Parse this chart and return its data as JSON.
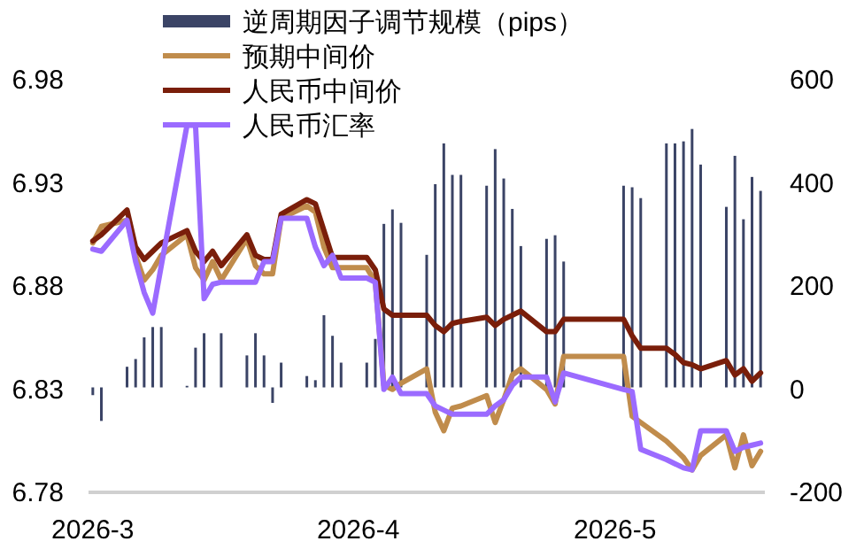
{
  "chart_data": {
    "type": "line",
    "marker": "none",
    "line_style": "solid",
    "legend": "top",
    "grid": false,
    "x": [
      "2026-03-01",
      "2026-03-02",
      "2026-03-05",
      "2026-03-06",
      "2026-03-07",
      "2026-03-08",
      "2026-03-09",
      "2026-03-12",
      "2026-03-13",
      "2026-03-14",
      "2026-03-15",
      "2026-03-16",
      "2026-03-19",
      "2026-03-20",
      "2026-03-21",
      "2026-03-22",
      "2026-03-23",
      "2026-03-26",
      "2026-03-27",
      "2026-03-28",
      "2026-03-29",
      "2026-03-30",
      "2026-04-02",
      "2026-04-03",
      "2026-04-04",
      "2026-04-05",
      "2026-04-06",
      "2026-04-09",
      "2026-04-10",
      "2026-04-11",
      "2026-04-12",
      "2026-04-13",
      "2026-04-16",
      "2026-04-17",
      "2026-04-18",
      "2026-04-19",
      "2026-04-20",
      "2026-04-23",
      "2026-04-24",
      "2026-04-25",
      "2026-05-02",
      "2026-05-03",
      "2026-05-04",
      "2026-05-07",
      "2026-05-08",
      "2026-05-09",
      "2026-05-10",
      "2026-05-11",
      "2026-05-14",
      "2026-05-15",
      "2026-05-16",
      "2026-05-17",
      "2026-05-18"
    ],
    "xlim": [
      "2026-02-28T12:00",
      "2026-05-18T12:00"
    ],
    "xticks": [
      {
        "value": "2026-03-01",
        "label": "2026-3"
      },
      {
        "value": "2026-04-01",
        "label": "2026-4"
      },
      {
        "value": "2026-05-01",
        "label": "2026-5"
      }
    ],
    "ylim": [
      6.78,
      6.98
    ],
    "yticks": [
      6.78,
      6.83,
      6.88,
      6.93,
      6.98
    ],
    "y2lim": [
      -200,
      600
    ],
    "y2ticks": [
      -200,
      0,
      200,
      400,
      600
    ],
    "series": [
      {
        "name": "逆周期因子调节规模（pips）",
        "type": "bar",
        "axis": "y2",
        "color": "#3b4466",
        "values": [
          -15,
          -65,
          40,
          55,
          97,
          117,
          117,
          3,
          77,
          105,
          null,
          105,
          62,
          105,
          62,
          -30,
          48,
          22,
          14,
          140,
          100,
          48,
          48,
          94,
          317,
          345,
          319,
          257,
          394,
          473,
          412,
          412,
          391,
          462,
          405,
          346,
          274,
          288,
          295,
          244,
          391,
          388,
          367,
          473,
          473,
          477,
          501,
          432,
          350,
          449,
          326,
          408,
          381
        ]
      },
      {
        "name": "预期中间价",
        "color": "#c08c4c",
        "values": [
          6.9,
          6.908,
          6.911,
          6.894,
          6.882,
          6.887,
          6.894,
          6.904,
          6.888,
          6.882,
          6.891,
          6.882,
          6.902,
          6.889,
          6.885,
          6.885,
          6.912,
          6.918,
          6.915,
          6.898,
          6.888,
          6.888,
          6.888,
          6.881,
          6.831,
          6.829,
          6.832,
          6.839,
          6.818,
          6.809,
          6.82,
          6.821,
          6.826,
          6.813,
          6.824,
          6.836,
          6.839,
          6.829,
          6.822,
          6.845,
          6.845,
          6.816,
          6.813,
          6.804,
          6.8,
          6.796,
          6.79,
          6.797,
          6.807,
          6.791,
          6.807,
          6.792,
          6.799
        ]
      },
      {
        "name": "人民币中间价",
        "color": "#7a1e0a",
        "values": [
          6.901,
          6.904,
          6.916,
          6.898,
          6.892,
          6.896,
          6.9,
          6.906,
          6.896,
          6.891,
          6.896,
          6.889,
          6.904,
          6.894,
          6.892,
          6.892,
          6.914,
          6.921,
          6.919,
          6.906,
          6.893,
          6.893,
          6.893,
          6.887,
          6.868,
          6.865,
          6.865,
          6.865,
          6.86,
          6.857,
          6.861,
          6.862,
          6.864,
          6.86,
          6.863,
          6.865,
          6.867,
          6.857,
          6.857,
          6.863,
          6.863,
          6.855,
          6.849,
          6.849,
          6.846,
          6.842,
          6.841,
          6.839,
          6.843,
          6.836,
          6.839,
          6.833,
          6.837
        ]
      },
      {
        "name": "人民币汇率",
        "color": "#9b6bff",
        "values": [
          6.897,
          6.896,
          6.911,
          6.891,
          6.876,
          6.866,
          6.889,
          6.957,
          6.957,
          6.873,
          6.88,
          6.881,
          6.881,
          6.881,
          6.891,
          6.891,
          6.912,
          6.912,
          6.898,
          6.889,
          6.894,
          6.883,
          6.883,
          6.881,
          6.829,
          6.835,
          6.827,
          6.827,
          6.821,
          6.819,
          6.817,
          6.817,
          6.817,
          6.821,
          6.824,
          6.831,
          6.835,
          6.835,
          6.823,
          6.837,
          6.829,
          6.828,
          6.8,
          6.795,
          6.793,
          6.791,
          6.79,
          6.809,
          6.809,
          6.799,
          6.801,
          6.802,
          6.803
        ]
      }
    ]
  }
}
